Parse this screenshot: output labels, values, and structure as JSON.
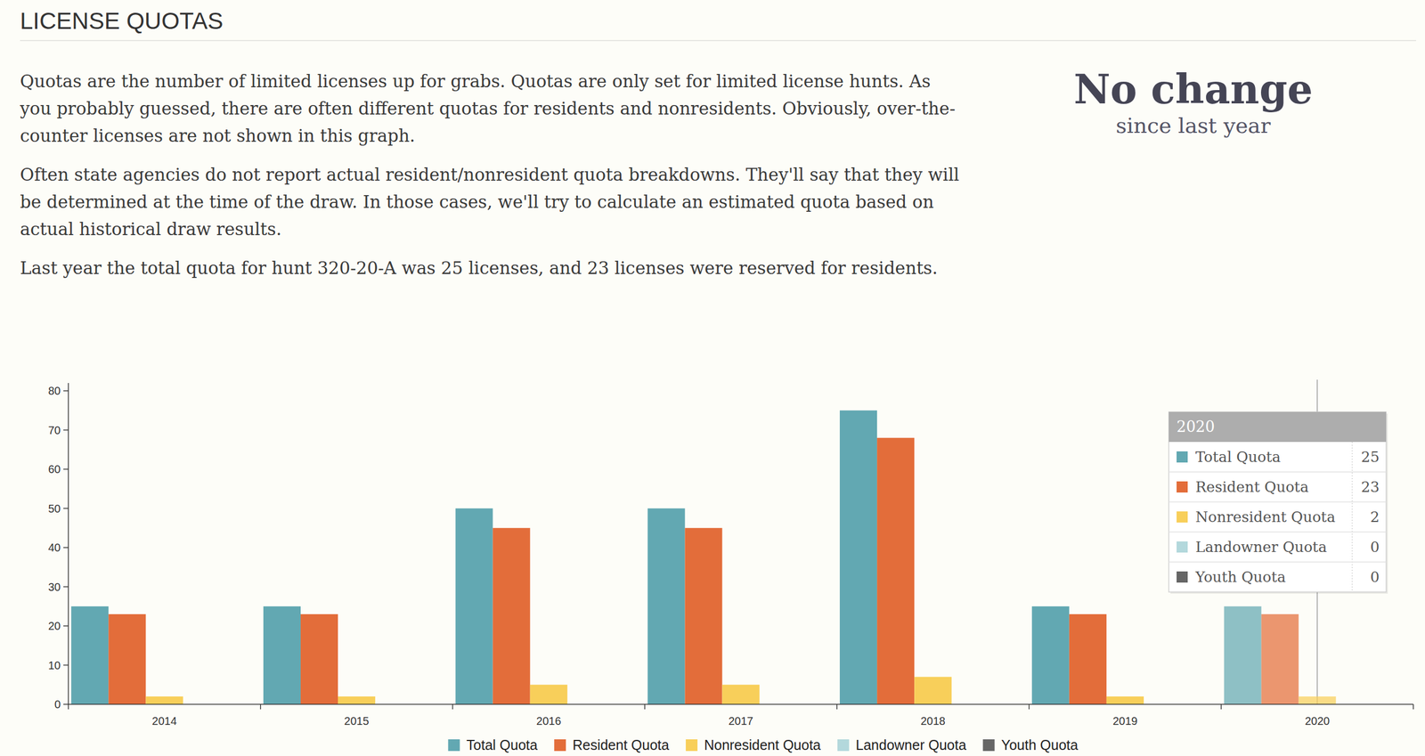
{
  "header": {
    "title": "LICENSE QUOTAS",
    "paragraphs": [
      "Quotas are the number of limited licenses up for grabs. Quotas are only set for limited license hunts. As you probably guessed, there are often different quotas for residents and nonresidents. Obviously, over-the-counter licenses are not shown in this graph.",
      "Often state agencies do not report actual resident/nonresident quota breakdowns. They'll say that they will be determined at the time of the draw. In those cases, we'll try to calculate an estimated quota based on actual historical draw results.",
      "Last year the total quota for hunt 320-20-A was 25 licenses, and 23 licenses were reserved for residents."
    ],
    "badge": {
      "title": "No change",
      "subtitle": "since last year"
    }
  },
  "chart_data": {
    "type": "bar",
    "categories": [
      "2014",
      "2015",
      "2016",
      "2017",
      "2018",
      "2019",
      "2020"
    ],
    "series": [
      {
        "name": "Total Quota",
        "color": "#62a8b2",
        "values": [
          25,
          25,
          50,
          50,
          75,
          25,
          25
        ]
      },
      {
        "name": "Resident Quota",
        "color": "#e36d3a",
        "values": [
          23,
          23,
          45,
          45,
          68,
          23,
          23
        ]
      },
      {
        "name": "Nonresident Quota",
        "color": "#f8cf5a",
        "values": [
          2,
          2,
          5,
          5,
          7,
          2,
          2
        ]
      },
      {
        "name": "Landowner Quota",
        "color": "#b3d8dc",
        "values": [
          0,
          0,
          0,
          0,
          0,
          0,
          0
        ]
      },
      {
        "name": "Youth Quota",
        "color": "#666666",
        "values": [
          0,
          0,
          0,
          0,
          0,
          0,
          0
        ]
      }
    ],
    "ylim": [
      0,
      82
    ],
    "yticks": [
      0,
      10,
      20,
      30,
      40,
      50,
      60,
      70,
      80
    ],
    "grid": false,
    "legend": "bottom",
    "tooltip": "2020"
  }
}
